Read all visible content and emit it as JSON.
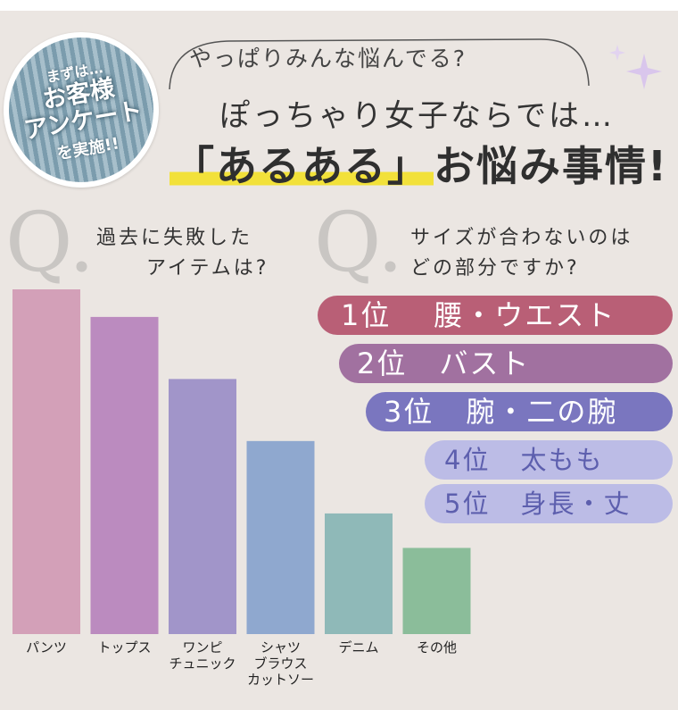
{
  "badge": {
    "line1": "まずは…",
    "line2": "お客様",
    "line3": "アンケート",
    "line4": "を実施!!"
  },
  "header": {
    "tagline": "やっぱりみんな悩んでる?",
    "title_line1": "ぽっちゃり女子ならでは…",
    "title_highlight": "「あるある」",
    "title_rest": "お悩み事情!"
  },
  "q1": {
    "mark": "Q.",
    "line1": "過去に失敗した",
    "line2": "アイテムは?"
  },
  "q2": {
    "mark": "Q.",
    "line1": "サイズが合わないのは",
    "line2": "どの部分ですか?"
  },
  "chart_data": {
    "type": "bar",
    "categories": [
      "パンツ",
      "トップス",
      "ワンピ\nチュニック",
      "シャツ\nブラウス\nカットソー",
      "デニム",
      "その他"
    ],
    "values": [
      100,
      92,
      74,
      56,
      35,
      25
    ],
    "colors": [
      "#d3a0b8",
      "#bb8bbf",
      "#a195c9",
      "#8fa8cf",
      "#8fb9b8",
      "#8bbd9a"
    ]
  },
  "ranking": [
    {
      "position": "1位",
      "item": "腰・ウエスト",
      "color": "#b95f76"
    },
    {
      "position": "2位",
      "item": "バスト",
      "color": "#a171a0"
    },
    {
      "position": "3位",
      "item": "腕・二の腕",
      "color": "#7a76bf"
    },
    {
      "position": "4位",
      "item": "太もも",
      "color": "#bcbce6"
    },
    {
      "position": "5位",
      "item": "身長・丈",
      "color": "#bcbce6"
    }
  ]
}
